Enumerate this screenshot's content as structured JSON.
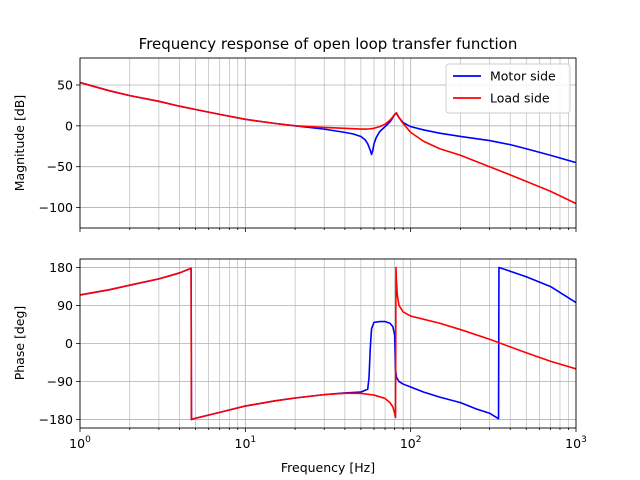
{
  "chart_data": [
    {
      "type": "line",
      "title": "Frequency response of open loop transfer function",
      "xlabel": "",
      "ylabel": "Magnitude [dB]",
      "xscale": "log",
      "xlim": [
        1,
        1000
      ],
      "ylim": [
        -125,
        83
      ],
      "yticks": [
        50,
        0,
        -50,
        -100
      ],
      "ytick_labels": [
        "50",
        "0",
        "−50",
        "−100"
      ],
      "grid": "major and minor",
      "legend": "top-right",
      "series": [
        {
          "name": "Motor side",
          "color": "#0000ff",
          "x": [
            1,
            1.5,
            2,
            3,
            4,
            5,
            7,
            10,
            15,
            20,
            30,
            40,
            45,
            50,
            53,
            55,
            57,
            58,
            59,
            60,
            62,
            65,
            70,
            75,
            78,
            80,
            82,
            85,
            90,
            100,
            120,
            150,
            200,
            300,
            400,
            500,
            700,
            1000
          ],
          "y": [
            53,
            43,
            37,
            30,
            24,
            20,
            14,
            8,
            3,
            0,
            -4,
            -8,
            -10,
            -13,
            -17,
            -22,
            -30,
            -35,
            -30,
            -22,
            -14,
            -7,
            -1,
            5,
            10,
            14,
            15,
            10,
            4,
            -1,
            -5,
            -9,
            -13,
            -18,
            -23,
            -28,
            -36,
            -45
          ]
        },
        {
          "name": "Load side",
          "color": "#ff0000",
          "x": [
            1,
            1.5,
            2,
            3,
            4,
            5,
            7,
            10,
            15,
            20,
            30,
            40,
            50,
            55,
            60,
            65,
            70,
            75,
            78,
            80,
            82,
            85,
            90,
            100,
            120,
            150,
            200,
            300,
            400,
            500,
            700,
            1000
          ],
          "y": [
            53,
            43,
            37,
            30,
            24,
            20,
            14,
            8,
            3,
            0,
            -2,
            -3,
            -4,
            -4,
            -3,
            -1,
            2,
            7,
            11,
            14,
            16,
            10,
            3,
            -8,
            -19,
            -28,
            -36,
            -50,
            -60,
            -68,
            -80,
            -95
          ]
        }
      ]
    },
    {
      "type": "line",
      "title": "",
      "xlabel": "Frequency [Hz]",
      "ylabel": "Phase [deg]",
      "xscale": "log",
      "xlim": [
        1,
        1000
      ],
      "xticks": [
        1,
        10,
        100,
        1000
      ],
      "xtick_labels": [
        [
          "10",
          "0"
        ],
        [
          "10",
          "1"
        ],
        [
          "10",
          "2"
        ],
        [
          "10",
          "3"
        ]
      ],
      "ylim": [
        -200,
        200
      ],
      "yticks": [
        180,
        90,
        0,
        -90,
        -180
      ],
      "ytick_labels": [
        "180",
        "90",
        "0",
        "−90",
        "−180"
      ],
      "grid": "major and minor",
      "series": [
        {
          "name": "Motor side",
          "color": "#0000ff",
          "x": [
            1,
            1.5,
            2,
            3,
            4,
            4.7,
            4.72,
            5,
            7,
            10,
            15,
            20,
            30,
            40,
            50,
            55,
            56,
            57,
            58,
            60,
            65,
            70,
            75,
            78,
            80,
            81,
            82,
            85,
            90,
            100,
            120,
            150,
            200,
            250,
            300,
            340,
            342,
            400,
            500,
            700,
            1000
          ],
          "y": [
            115,
            127,
            138,
            153,
            167,
            178,
            -180,
            -177,
            -163,
            -148,
            -136,
            -129,
            -121,
            -117,
            -115,
            -108,
            -80,
            -10,
            35,
            50,
            52,
            52,
            48,
            40,
            20,
            -60,
            -80,
            -90,
            -96,
            -103,
            -115,
            -127,
            -140,
            -155,
            -165,
            -178,
            180,
            171,
            158,
            135,
            97
          ]
        },
        {
          "name": "Load side",
          "color": "#ff0000",
          "x": [
            1,
            1.5,
            2,
            3,
            4,
            4.7,
            4.72,
            5,
            7,
            10,
            15,
            20,
            30,
            40,
            50,
            60,
            70,
            75,
            78,
            80,
            81,
            81.5,
            82,
            83,
            85,
            90,
            100,
            150,
            200,
            300,
            500,
            700,
            1000
          ],
          "y": [
            115,
            127,
            138,
            153,
            167,
            178,
            -180,
            -177,
            -163,
            -148,
            -136,
            -129,
            -121,
            -118,
            -118,
            -122,
            -130,
            -140,
            -150,
            -165,
            -175,
            180,
            150,
            115,
            90,
            75,
            65,
            48,
            33,
            10,
            -22,
            -42,
            -60
          ]
        }
      ]
    }
  ]
}
